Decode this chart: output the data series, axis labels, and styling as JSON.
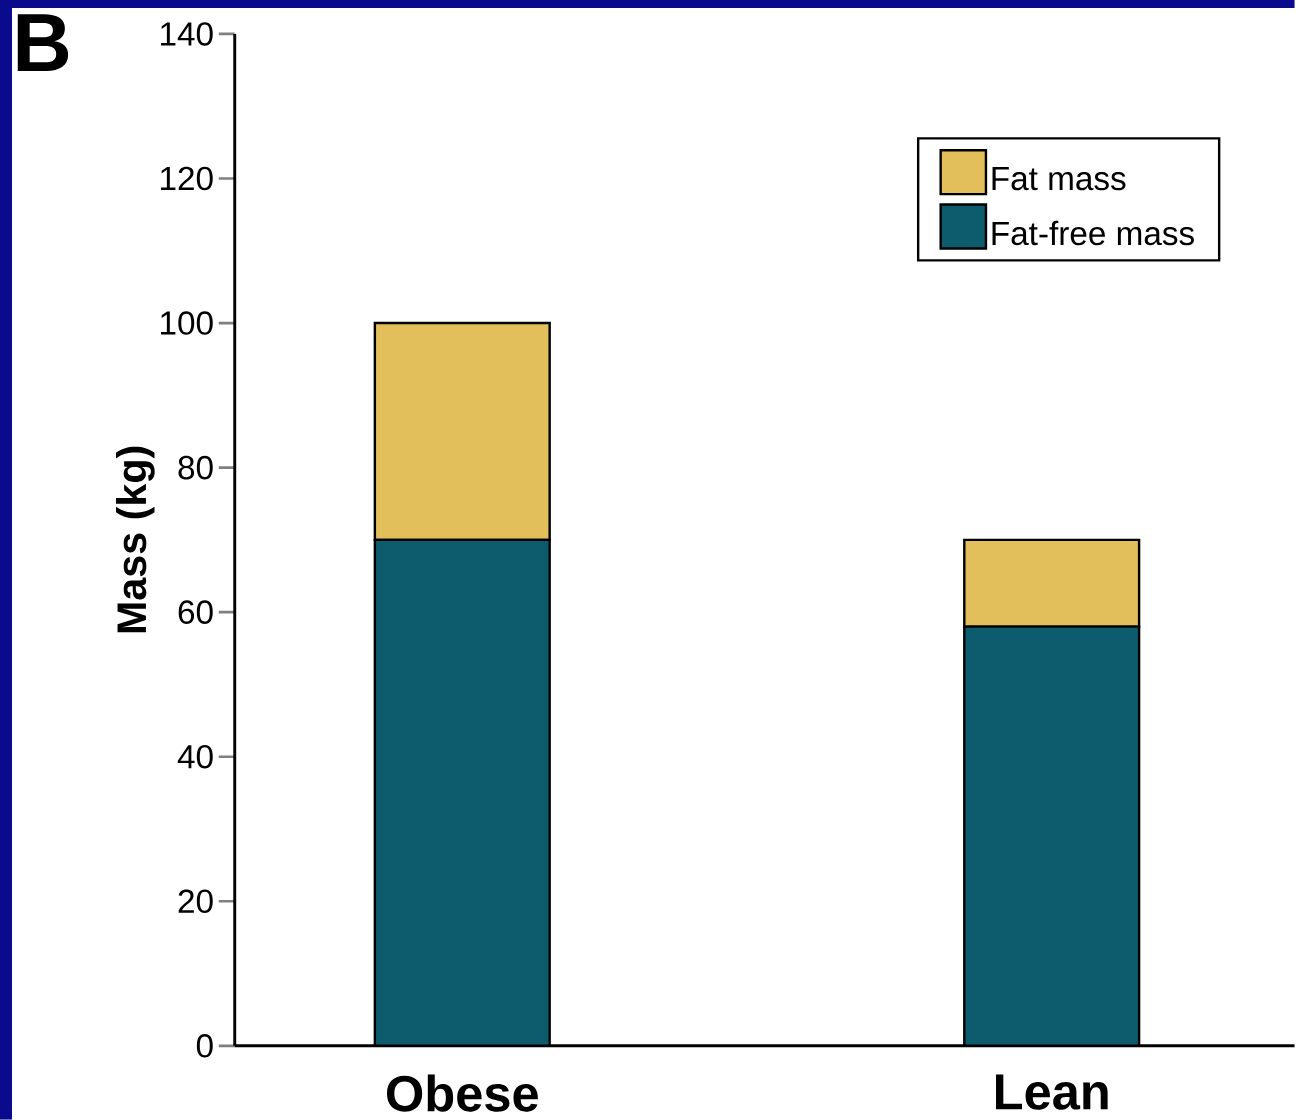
{
  "chart_data": {
    "type": "bar",
    "stacked": true,
    "ylabel": "Mass (kg)",
    "annotations": [
      "B"
    ],
    "categories": [
      "Obese",
      "Lean"
    ],
    "series": [
      {
        "name": "Fat-free mass",
        "color": "#0d5c6e",
        "values": [
          70,
          58
        ]
      },
      {
        "name": "Fat mass",
        "color": "#e3bf5b",
        "values": [
          30,
          12
        ]
      }
    ],
    "ylim": [
      0,
      140
    ],
    "yticks": [
      0,
      20,
      40,
      60,
      80,
      100,
      120,
      140
    ],
    "grid": false,
    "legend": "top right"
  }
}
